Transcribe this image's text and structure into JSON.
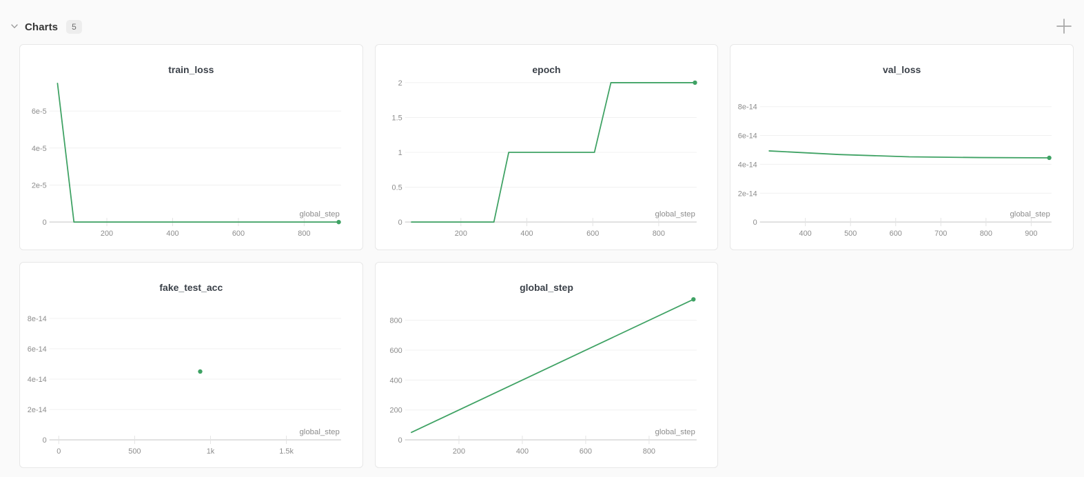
{
  "header": {
    "title": "Charts",
    "count": "5"
  },
  "icons": {
    "collapse": "chevron-down",
    "add": "plus"
  },
  "colors": {
    "line": "#3fa264",
    "grid": "#f0f0f0",
    "axis": "#e0e0e0",
    "tick_mark": "#e3e3e3",
    "tick_label": "#8c8c8c",
    "xlabel": "#8c8c8c",
    "title": "#3b4149",
    "card_border": "#e7e7e7",
    "card_bg": "#ffffff",
    "page_bg": "#fafafa"
  },
  "chart_data": [
    {
      "type": "line",
      "title": "train_loss",
      "xlabel": "global_step",
      "x": [
        50,
        100,
        905
      ],
      "y": [
        7.5e-05,
        0,
        0
      ],
      "xlim": [
        40,
        912
      ],
      "ylim": [
        0,
        7.8e-05
      ],
      "xticks": [
        {
          "v": 200,
          "label": "200"
        },
        {
          "v": 400,
          "label": "400"
        },
        {
          "v": 600,
          "label": "600"
        },
        {
          "v": 800,
          "label": "800"
        }
      ],
      "yticks": [
        {
          "v": 0,
          "label": "0"
        },
        {
          "v": 2e-05,
          "label": "2e-5"
        },
        {
          "v": 4e-05,
          "label": "4e-5"
        },
        {
          "v": 6e-05,
          "label": "6e-5"
        }
      ],
      "end_marker": true,
      "grid": true,
      "legend": "none"
    },
    {
      "type": "line",
      "title": "epoch",
      "xlabel": "global_step",
      "x": [
        50,
        300,
        345,
        605,
        655,
        910
      ],
      "y": [
        0,
        0,
        1,
        1,
        2,
        2
      ],
      "xlim": [
        45,
        915
      ],
      "ylim": [
        0,
        2.07
      ],
      "xticks": [
        {
          "v": 200,
          "label": "200"
        },
        {
          "v": 400,
          "label": "400"
        },
        {
          "v": 600,
          "label": "600"
        },
        {
          "v": 800,
          "label": "800"
        }
      ],
      "yticks": [
        {
          "v": 0,
          "label": "0"
        },
        {
          "v": 0.5,
          "label": "0.5"
        },
        {
          "v": 1,
          "label": "1"
        },
        {
          "v": 1.5,
          "label": "1.5"
        },
        {
          "v": 2,
          "label": "2"
        }
      ],
      "end_marker": true,
      "grid": true,
      "legend": "none"
    },
    {
      "type": "line",
      "title": "val_loss",
      "xlabel": "global_step",
      "x": [
        320,
        475,
        630,
        785,
        940
      ],
      "y": [
        4.93e-14,
        4.68e-14,
        4.52e-14,
        4.47e-14,
        4.45e-14
      ],
      "xlim": [
        310,
        945
      ],
      "ylim": [
        0,
        1e-13
      ],
      "xticks": [
        {
          "v": 400,
          "label": "400"
        },
        {
          "v": 500,
          "label": "500"
        },
        {
          "v": 600,
          "label": "600"
        },
        {
          "v": 700,
          "label": "700"
        },
        {
          "v": 800,
          "label": "800"
        },
        {
          "v": 900,
          "label": "900"
        }
      ],
      "yticks": [
        {
          "v": 0,
          "label": "0"
        },
        {
          "v": 2e-14,
          "label": "2e-14"
        },
        {
          "v": 4e-14,
          "label": "4e-14"
        },
        {
          "v": 6e-14,
          "label": "6e-14"
        },
        {
          "v": 8e-14,
          "label": "8e-14"
        }
      ],
      "end_marker": true,
      "grid": true,
      "legend": "none"
    },
    {
      "type": "scatter",
      "title": "fake_test_acc",
      "xlabel": "global_step",
      "x": [
        932
      ],
      "y": [
        4.5e-14
      ],
      "xlim": [
        -30,
        1860
      ],
      "ylim": [
        0,
        9.5e-14
      ],
      "xticks": [
        {
          "v": 0,
          "label": "0"
        },
        {
          "v": 500,
          "label": "500"
        },
        {
          "v": 1000,
          "label": "1k"
        },
        {
          "v": 1500,
          "label": "1.5k"
        }
      ],
      "yticks": [
        {
          "v": 0,
          "label": "0"
        },
        {
          "v": 2e-14,
          "label": "2e-14"
        },
        {
          "v": 4e-14,
          "label": "4e-14"
        },
        {
          "v": 6e-14,
          "label": "6e-14"
        },
        {
          "v": 8e-14,
          "label": "8e-14"
        }
      ],
      "end_marker": true,
      "grid": true,
      "legend": "none"
    },
    {
      "type": "line",
      "title": "global_step",
      "xlabel": "global_step",
      "x": [
        50,
        940
      ],
      "y": [
        50,
        940
      ],
      "xlim": [
        45,
        950
      ],
      "ylim": [
        0,
        965
      ],
      "xticks": [
        {
          "v": 200,
          "label": "200"
        },
        {
          "v": 400,
          "label": "400"
        },
        {
          "v": 600,
          "label": "600"
        },
        {
          "v": 800,
          "label": "800"
        }
      ],
      "yticks": [
        {
          "v": 0,
          "label": "0"
        },
        {
          "v": 200,
          "label": "200"
        },
        {
          "v": 400,
          "label": "400"
        },
        {
          "v": 600,
          "label": "600"
        },
        {
          "v": 800,
          "label": "800"
        }
      ],
      "end_marker": true,
      "grid": true,
      "legend": "none"
    }
  ]
}
